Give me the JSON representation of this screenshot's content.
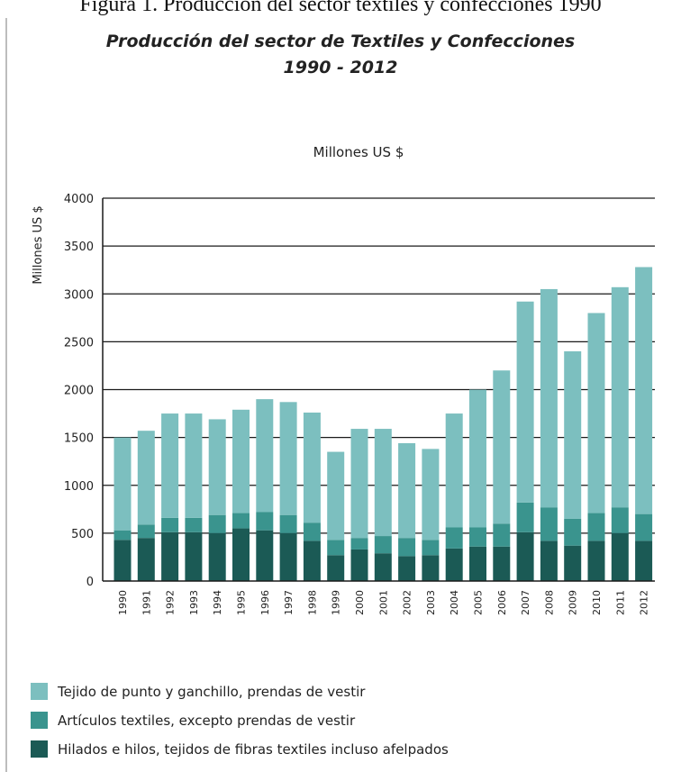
{
  "header_text": "Figura 1. Producción del sector textiles y confecciones 1990",
  "chart_data": {
    "type": "bar",
    "stacked": true,
    "title": "Producción del sector de Textiles y Confecciones",
    "subtitle": "1990 - 2012",
    "unit_label": "Millones US $",
    "ylabel": "Millones US $",
    "ylim": [
      0,
      4000
    ],
    "yticks": [
      0,
      500,
      1000,
      1500,
      2000,
      2500,
      3000,
      3500,
      4000
    ],
    "ytick_labels": [
      "0",
      "500",
      "1000",
      "1500",
      "2000",
      "2500",
      "3000",
      "3500",
      "4000"
    ],
    "grid": true,
    "legend_position": "bottom-left",
    "categories": [
      "1990",
      "1991",
      "1992",
      "1993",
      "1994",
      "1995",
      "1996",
      "1997",
      "1998",
      "1999",
      "2000",
      "2001",
      "2002",
      "2003",
      "2004",
      "2005",
      "2006",
      "2007",
      "2008",
      "2009",
      "2010",
      "2011",
      "2012"
    ],
    "series": [
      {
        "name": "Hilados e hilos, tejidos de fibras textiles incluso afelpados",
        "color": "#1b5a55",
        "values": [
          430,
          450,
          510,
          510,
          500,
          550,
          530,
          500,
          420,
          270,
          330,
          290,
          260,
          270,
          340,
          360,
          360,
          510,
          420,
          370,
          420,
          500,
          420
        ]
      },
      {
        "name": "Artículos textiles, excepto prendas de vestir",
        "color": "#3a948e",
        "values": [
          100,
          140,
          150,
          150,
          190,
          160,
          190,
          190,
          190,
          160,
          120,
          180,
          190,
          160,
          220,
          200,
          240,
          310,
          350,
          280,
          290,
          270,
          280
        ]
      },
      {
        "name": "Tejido de punto y ganchillo, prendas de vestir",
        "color": "#7cbfbf",
        "values": [
          970,
          980,
          1090,
          1090,
          1000,
          1080,
          1180,
          1180,
          1150,
          920,
          1140,
          1120,
          990,
          950,
          1190,
          1440,
          1600,
          2100,
          2280,
          1750,
          2090,
          2300,
          2580
        ]
      }
    ]
  }
}
